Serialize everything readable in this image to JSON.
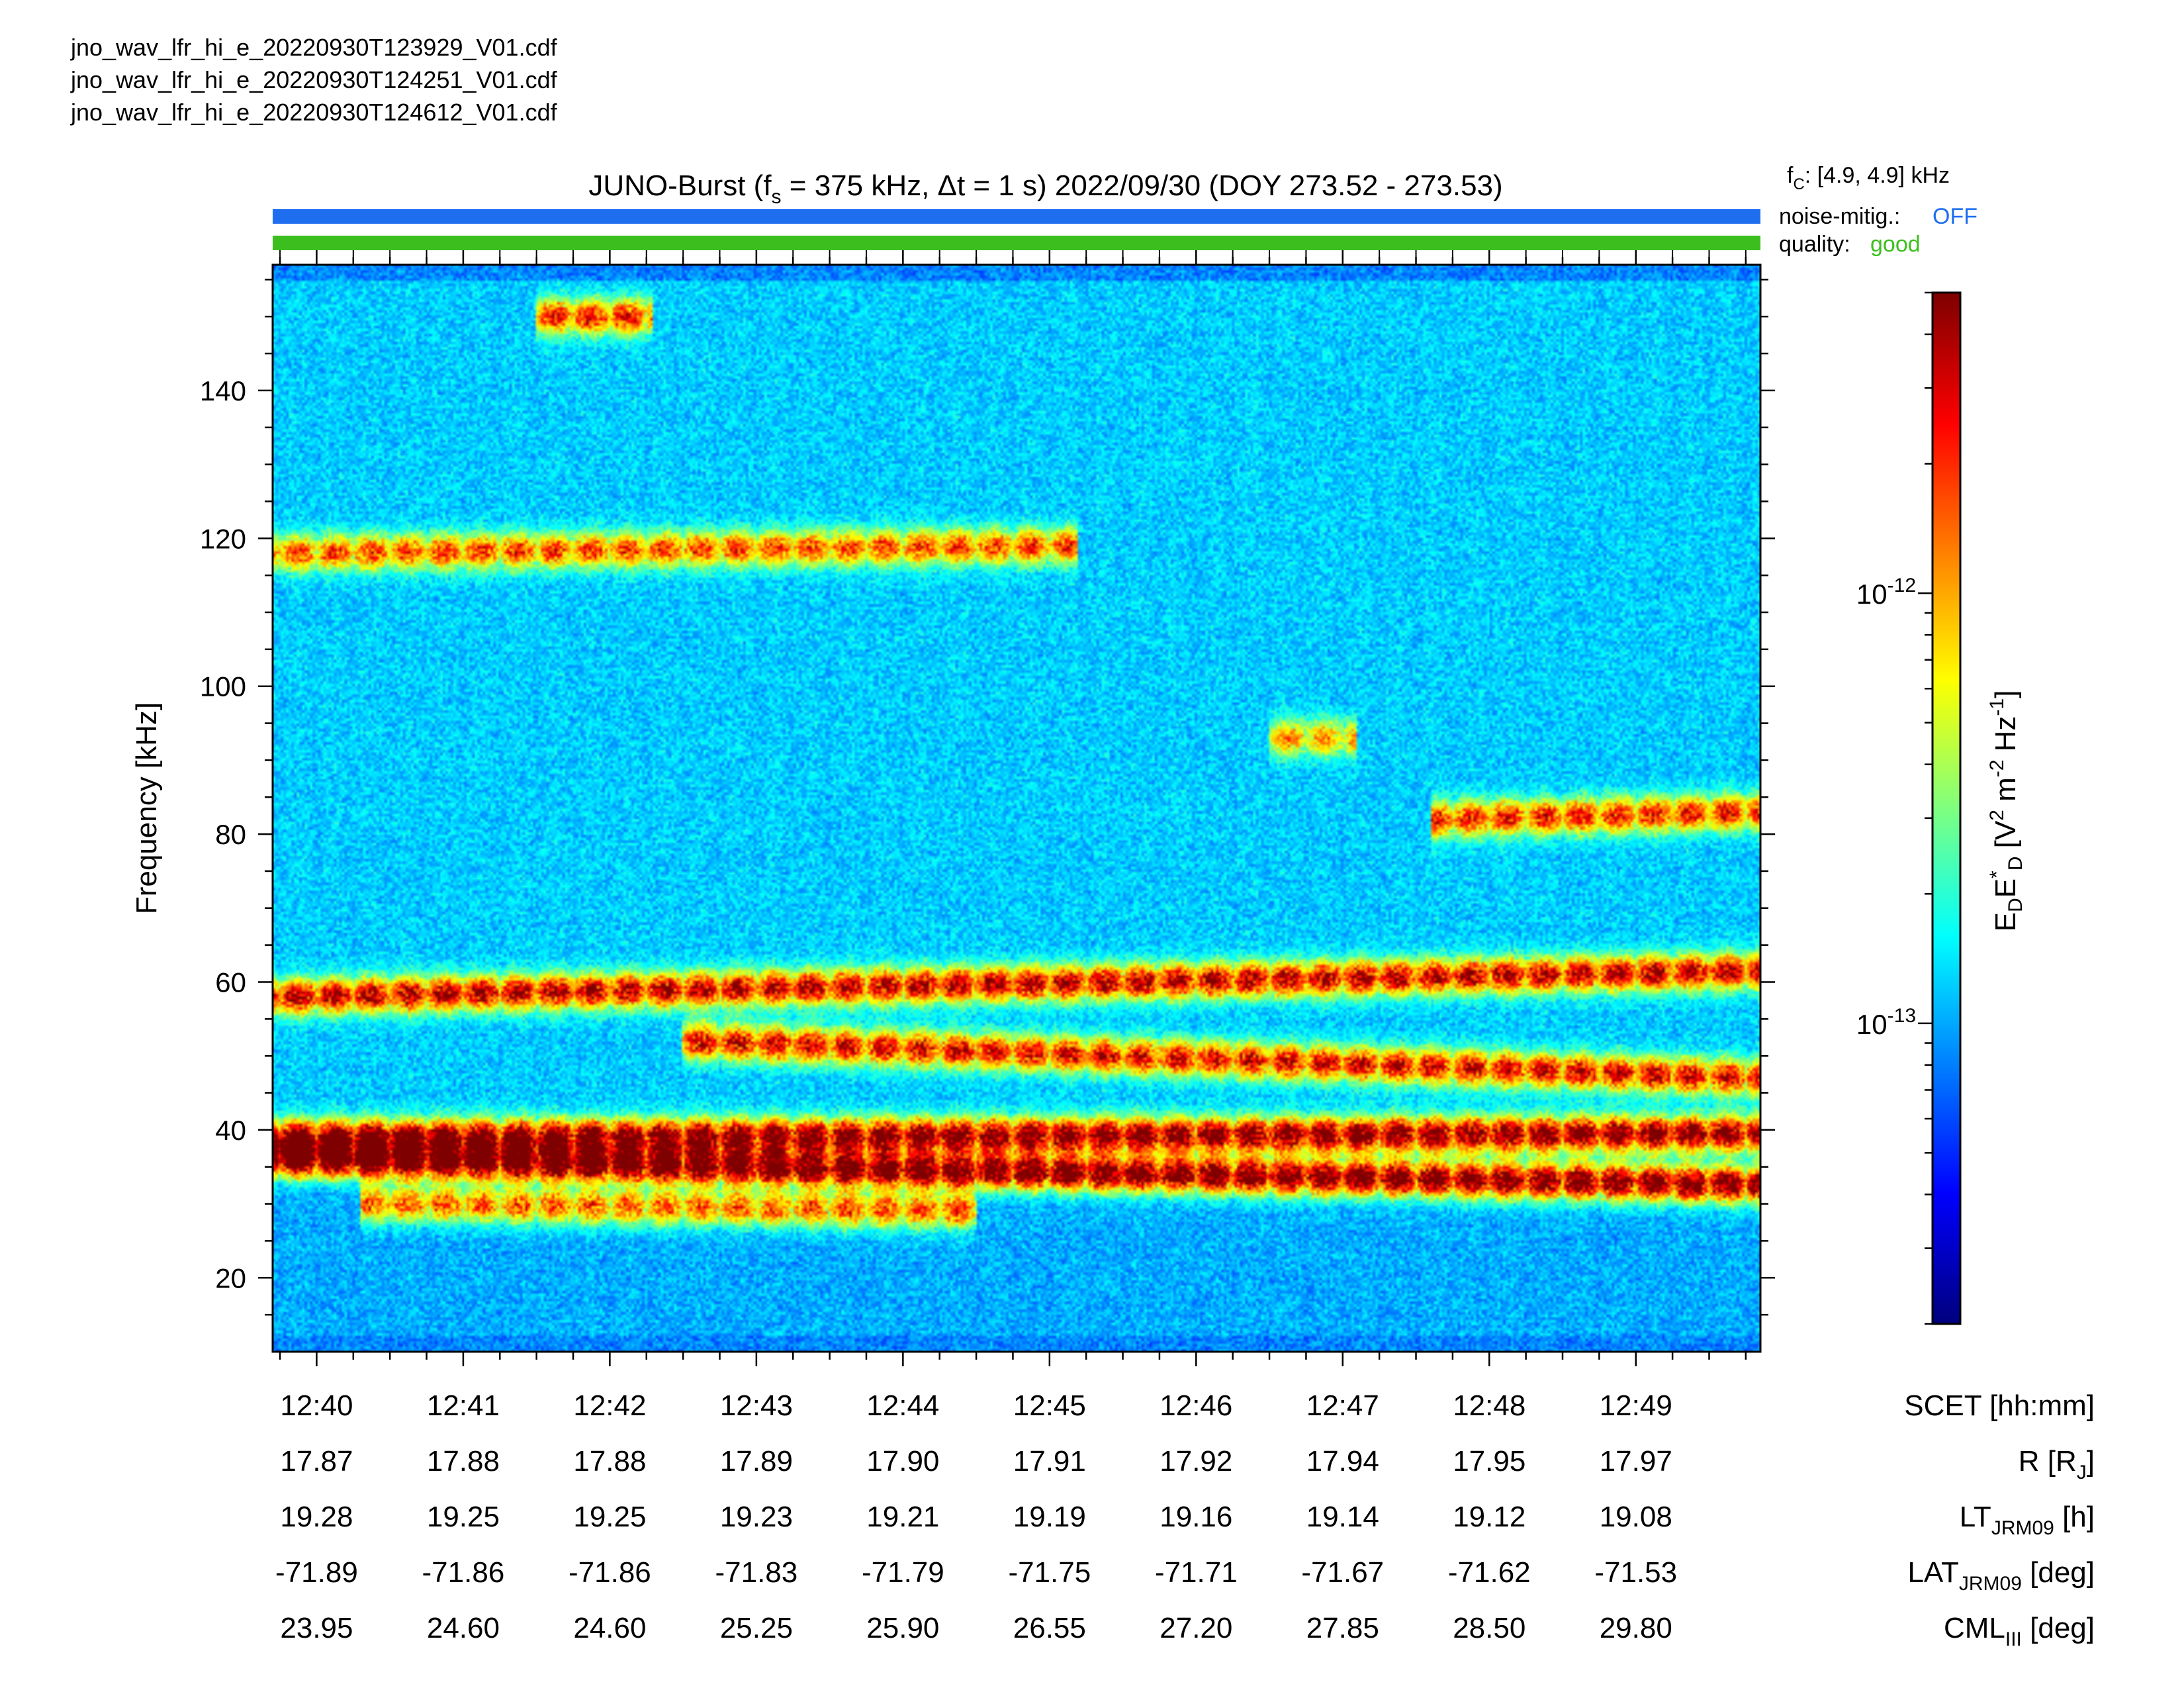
{
  "files": [
    "jno_wav_lfr_hi_e_20220930T123929_V01.cdf",
    "jno_wav_lfr_hi_e_20220930T124251_V01.cdf",
    "jno_wav_lfr_hi_e_20220930T124612_V01.cdf"
  ],
  "header": {
    "title_pre": "JUNO-Burst (f",
    "title_sub": "s",
    "title_post": " = 375 kHz, Δt = 1 s)  2022/09/30 (DOY 273.52 - 273.53)",
    "fc_main": "f",
    "fc_sub": "C",
    "fc_value": ": [4.9, 4.9] kHz",
    "noise_label": "noise-mitig.:",
    "noise_value": "OFF",
    "quality_label": "quality:",
    "quality_value": "good"
  },
  "colors": {
    "noise_bar": "#1f6ef0",
    "quality_bar": "#3cbf1e",
    "noise_text": "#1f6ef0",
    "quality_text": "#3cbf1e"
  },
  "chart_data": {
    "type": "heatmap",
    "ylabel": "Frequency [kHz]",
    "yticks": [
      20,
      40,
      60,
      80,
      100,
      120,
      140
    ],
    "ylim": [
      10,
      157
    ],
    "xlim_minutes": [
      39.7,
      49.85
    ],
    "x_tick_labels": [
      "12:40",
      "12:41",
      "12:42",
      "12:43",
      "12:44",
      "12:45",
      "12:46",
      "12:47",
      "12:48",
      "12:49"
    ],
    "colorbar": {
      "scale": "log",
      "range": [
        2e-14,
        5e-12
      ],
      "tick_labels": [
        {
          "base": "10",
          "exp": "-12",
          "value": 1e-12
        },
        {
          "base": "10",
          "exp": "-13",
          "value": 1e-13
        }
      ],
      "label_parts": [
        {
          "t": "E",
          "s": ""
        },
        {
          "t": "D",
          "s": "sub"
        },
        {
          "t": "E",
          "s": ""
        },
        {
          "t": "*",
          "s": "sup"
        },
        {
          "t": "D",
          "s": "sub"
        },
        {
          "t": "  [V",
          "s": ""
        },
        {
          "t": "2",
          "s": "sup"
        },
        {
          "t": " m",
          "s": ""
        },
        {
          "t": "-2",
          "s": "sup"
        },
        {
          "t": " Hz",
          "s": ""
        },
        {
          "t": "-1",
          "s": "sup"
        },
        {
          "t": "]",
          "s": ""
        }
      ]
    },
    "bands": [
      {
        "f_start": 36,
        "f_end": 32.5,
        "t_range": [
          39.7,
          49.85
        ],
        "peak": 0.85
      },
      {
        "f_start": 39,
        "f_end": 39.5,
        "t_range": [
          39.7,
          49.85
        ],
        "peak": 0.8
      },
      {
        "f_start": 58,
        "f_end": 61.5,
        "t_range": [
          39.7,
          49.85
        ],
        "peak": 0.7
      },
      {
        "f_start": 52,
        "f_end": 47,
        "t_range": [
          42.5,
          49.85
        ],
        "peak": 0.65
      },
      {
        "f_start": 118,
        "f_end": 119,
        "t_range": [
          39.7,
          45.2
        ],
        "peak": 0.55
      },
      {
        "f_start": 150,
        "f_end": 150,
        "t_range": [
          41.5,
          42.3
        ],
        "peak": 0.6
      },
      {
        "f_start": 82,
        "f_end": 83,
        "t_range": [
          47.6,
          49.85
        ],
        "peak": 0.6
      },
      {
        "f_start": 93,
        "f_end": 93,
        "t_range": [
          46.5,
          47.1
        ],
        "peak": 0.45
      },
      {
        "f_start": 30,
        "f_end": 29,
        "t_range": [
          40.3,
          44.5
        ],
        "peak": 0.55
      }
    ],
    "ephemeris": {
      "labels": [
        {
          "main": "SCET [hh:mm]",
          "sub": "",
          "post": ""
        },
        {
          "main": "R [R",
          "sub": "J",
          "post": "]"
        },
        {
          "main": "LT",
          "sub": "JRM09",
          "post": " [h]"
        },
        {
          "main": "LAT",
          "sub": "JRM09",
          "post": " [deg]"
        },
        {
          "main": "CML",
          "sub": "III",
          "post": " [deg]"
        }
      ],
      "R": [
        "17.87",
        "17.88",
        "17.88",
        "17.89",
        "17.90",
        "17.91",
        "17.92",
        "17.94",
        "17.95",
        "17.97"
      ],
      "LT": [
        "19.28",
        "19.25",
        "19.25",
        "19.23",
        "19.21",
        "19.19",
        "19.16",
        "19.14",
        "19.12",
        "19.08"
      ],
      "LAT": [
        "-71.89",
        "-71.86",
        "-71.86",
        "-71.83",
        "-71.79",
        "-71.75",
        "-71.71",
        "-71.67",
        "-71.62",
        "-71.53"
      ],
      "CML": [
        "23.95",
        "24.60",
        "24.60",
        "25.25",
        "25.90",
        "26.55",
        "27.20",
        "27.85",
        "28.50",
        "29.80"
      ]
    }
  }
}
